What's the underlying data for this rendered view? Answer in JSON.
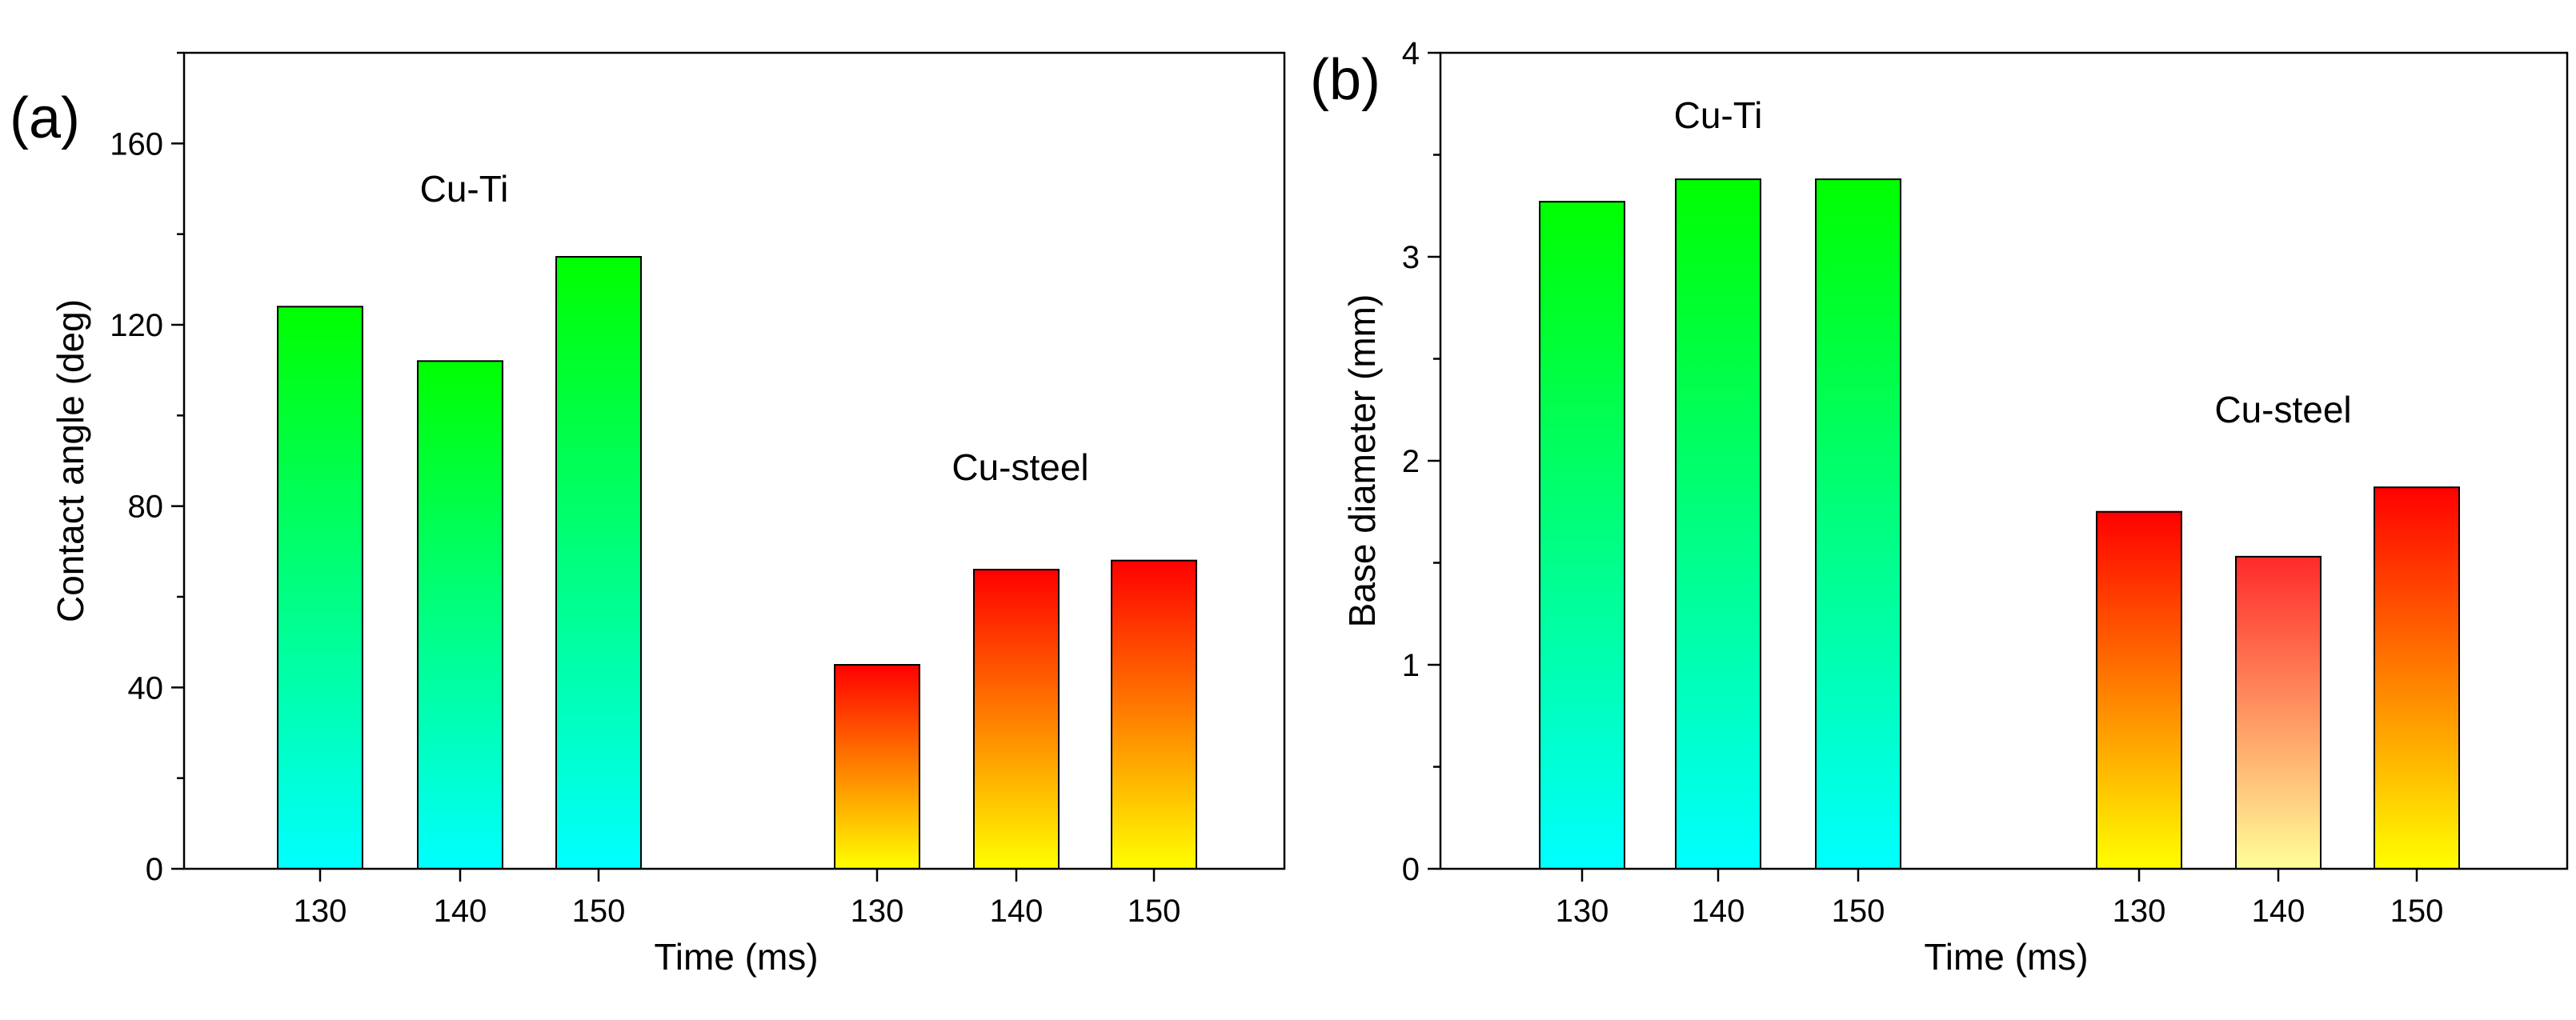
{
  "chart_data": [
    {
      "type": "bar",
      "panel_label": "(a)",
      "xlabel": "Time (ms)",
      "ylabel": "Contact angle (deg)",
      "ylim": [
        0,
        180
      ],
      "yticks": [
        0,
        40,
        80,
        120,
        160
      ],
      "groups": [
        {
          "name": "Cu-Ti",
          "categories": [
            "130",
            "140",
            "150"
          ],
          "values": [
            124,
            112,
            135
          ],
          "gradient": {
            "top": "#00ff00",
            "bottom": "#00ffff"
          }
        },
        {
          "name": "Cu-steel",
          "categories": [
            "130",
            "140",
            "150"
          ],
          "values": [
            45,
            66,
            68
          ],
          "gradient": {
            "top": "#ff0000",
            "bottom": "#ffff00"
          }
        }
      ]
    },
    {
      "type": "bar",
      "panel_label": "(b)",
      "xlabel": "Time (ms)",
      "ylabel": "Base diameter (mm)",
      "ylim": [
        0,
        4
      ],
      "yticks": [
        0,
        1,
        2,
        3,
        4
      ],
      "groups": [
        {
          "name": "Cu-Ti",
          "categories": [
            "130",
            "140",
            "150"
          ],
          "values": [
            3.27,
            3.38,
            3.38
          ],
          "gradient": {
            "top": "#00ff00",
            "bottom": "#00ffff"
          }
        },
        {
          "name": "Cu-steel",
          "categories": [
            "130",
            "140",
            "150"
          ],
          "values": [
            1.75,
            1.53,
            1.87
          ],
          "gradient": {
            "top": "#ff0000",
            "bottom": "#ffff00"
          }
        }
      ]
    }
  ]
}
